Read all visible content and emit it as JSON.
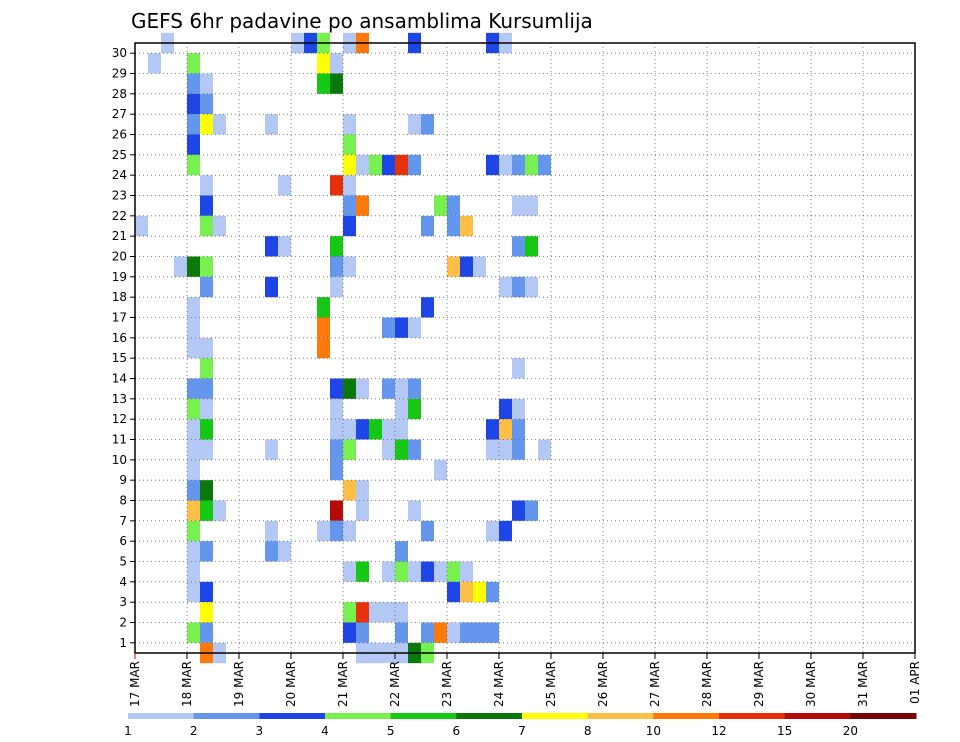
{
  "chart_data": {
    "type": "heatmap",
    "title": "GEFS 6hr padavine po ansamblima Kursumlija",
    "xlabel": "",
    "ylabel": "",
    "x_ticks": [
      "17 MAR",
      "18 MAR",
      "19 MAR",
      "20 MAR",
      "21 MAR",
      "22 MAR",
      "23 MAR",
      "24 MAR",
      "25 MAR",
      "26 MAR",
      "27 MAR",
      "28 MAR",
      "29 MAR",
      "30 MAR",
      "31 MAR",
      "01 APR"
    ],
    "x_range_steps": [
      0,
      60
    ],
    "y_ticks": [
      1,
      2,
      3,
      4,
      5,
      6,
      7,
      8,
      9,
      10,
      11,
      12,
      13,
      14,
      15,
      16,
      17,
      18,
      19,
      20,
      21,
      22,
      23,
      24,
      25,
      26,
      27,
      28,
      29,
      30
    ],
    "y_range": [
      0,
      30
    ],
    "grid": true,
    "colorbar": {
      "labels": [
        "1",
        "2",
        "3",
        "4",
        "5",
        "6",
        "7",
        "8",
        "10",
        "12",
        "15",
        "20"
      ],
      "colors": [
        "#b4c8f5",
        "#6496ee",
        "#1e46e6",
        "#78f050",
        "#14c814",
        "#0a780a",
        "#ffff00",
        "#ffbe46",
        "#ff780a",
        "#e6320a",
        "#b40a0a",
        "#780505"
      ]
    },
    "cells": [
      [
        2,
        30,
        0
      ],
      [
        12,
        30,
        0
      ],
      [
        13,
        30,
        2
      ],
      [
        14,
        30,
        3
      ],
      [
        16,
        30,
        0
      ],
      [
        17,
        30,
        8
      ],
      [
        21,
        30,
        2
      ],
      [
        27,
        30,
        2
      ],
      [
        28,
        30,
        0
      ],
      [
        1,
        29,
        0
      ],
      [
        4,
        29,
        3
      ],
      [
        14,
        29,
        6
      ],
      [
        15,
        29,
        0
      ],
      [
        4,
        28,
        1
      ],
      [
        5,
        28,
        0
      ],
      [
        14,
        28,
        4
      ],
      [
        15,
        28,
        5
      ],
      [
        4,
        27,
        2
      ],
      [
        5,
        27,
        1
      ],
      [
        4,
        26,
        1
      ],
      [
        5,
        26,
        6
      ],
      [
        6,
        26,
        0
      ],
      [
        10,
        26,
        0
      ],
      [
        16,
        26,
        0
      ],
      [
        21,
        26,
        0
      ],
      [
        22,
        26,
        1
      ],
      [
        4,
        25,
        2
      ],
      [
        16,
        25,
        3
      ],
      [
        4,
        24,
        3
      ],
      [
        16,
        24,
        6
      ],
      [
        17,
        24,
        0
      ],
      [
        18,
        24,
        3
      ],
      [
        19,
        24,
        2
      ],
      [
        20,
        24,
        3
      ],
      [
        20,
        24,
        9
      ],
      [
        21,
        24,
        1
      ],
      [
        27,
        24,
        2
      ],
      [
        28,
        24,
        0
      ],
      [
        29,
        24,
        1
      ],
      [
        30,
        24,
        3
      ],
      [
        31,
        24,
        1
      ],
      [
        5,
        23,
        0
      ],
      [
        11,
        23,
        0
      ],
      [
        15,
        23,
        9
      ],
      [
        16,
        23,
        0
      ],
      [
        5,
        22,
        2
      ],
      [
        16,
        22,
        1
      ],
      [
        17,
        22,
        8
      ],
      [
        23,
        22,
        3
      ],
      [
        24,
        22,
        1
      ],
      [
        29,
        22,
        0
      ],
      [
        30,
        22,
        0
      ],
      [
        0,
        21,
        0
      ],
      [
        5,
        21,
        3
      ],
      [
        6,
        21,
        0
      ],
      [
        16,
        21,
        2
      ],
      [
        22,
        21,
        1
      ],
      [
        24,
        21,
        1
      ],
      [
        25,
        21,
        7
      ],
      [
        10,
        20,
        2
      ],
      [
        11,
        20,
        0
      ],
      [
        15,
        20,
        4
      ],
      [
        29,
        20,
        1
      ],
      [
        30,
        20,
        4
      ],
      [
        3,
        19,
        0
      ],
      [
        4,
        19,
        5
      ],
      [
        5,
        19,
        3
      ],
      [
        15,
        19,
        1
      ],
      [
        16,
        19,
        0
      ],
      [
        24,
        19,
        7
      ],
      [
        25,
        19,
        2
      ],
      [
        26,
        19,
        0
      ],
      [
        5,
        18,
        1
      ],
      [
        10,
        18,
        0
      ],
      [
        10,
        18,
        2
      ],
      [
        15,
        18,
        0
      ],
      [
        28,
        18,
        0
      ],
      [
        29,
        18,
        1
      ],
      [
        30,
        18,
        0
      ],
      [
        4,
        17,
        0
      ],
      [
        14,
        17,
        4
      ],
      [
        22,
        17,
        2
      ],
      [
        4,
        16,
        0
      ],
      [
        14,
        16,
        8
      ],
      [
        19,
        16,
        1
      ],
      [
        20,
        16,
        2
      ],
      [
        21,
        16,
        0
      ],
      [
        4,
        15,
        0
      ],
      [
        5,
        15,
        0
      ],
      [
        14,
        15,
        0
      ],
      [
        14,
        15,
        8
      ],
      [
        5,
        14,
        3
      ],
      [
        29,
        14,
        0
      ],
      [
        4,
        13,
        1
      ],
      [
        5,
        13,
        1
      ],
      [
        15,
        13,
        2
      ],
      [
        16,
        13,
        5
      ],
      [
        17,
        13,
        0
      ],
      [
        19,
        13,
        1
      ],
      [
        20,
        13,
        0
      ],
      [
        21,
        13,
        1
      ],
      [
        4,
        12,
        3
      ],
      [
        5,
        12,
        0
      ],
      [
        15,
        12,
        0
      ],
      [
        20,
        12,
        0
      ],
      [
        21,
        12,
        4
      ],
      [
        28,
        12,
        2
      ],
      [
        29,
        12,
        0
      ],
      [
        4,
        11,
        0
      ],
      [
        5,
        11,
        4
      ],
      [
        15,
        11,
        0
      ],
      [
        16,
        11,
        0
      ],
      [
        17,
        11,
        2
      ],
      [
        18,
        11,
        4
      ],
      [
        19,
        11,
        0
      ],
      [
        20,
        11,
        0
      ],
      [
        27,
        11,
        2
      ],
      [
        28,
        11,
        7
      ],
      [
        29,
        11,
        1
      ],
      [
        4,
        10,
        0
      ],
      [
        5,
        10,
        0
      ],
      [
        10,
        10,
        0
      ],
      [
        15,
        10,
        1
      ],
      [
        16,
        10,
        3
      ],
      [
        19,
        10,
        0
      ],
      [
        20,
        10,
        4
      ],
      [
        21,
        10,
        1
      ],
      [
        27,
        10,
        0
      ],
      [
        28,
        10,
        0
      ],
      [
        29,
        10,
        1
      ],
      [
        31,
        10,
        0
      ],
      [
        4,
        9,
        0
      ],
      [
        15,
        9,
        1
      ],
      [
        23,
        9,
        0
      ],
      [
        4,
        8,
        1
      ],
      [
        5,
        8,
        5
      ],
      [
        16,
        8,
        7
      ],
      [
        17,
        8,
        0
      ],
      [
        4,
        7,
        7
      ],
      [
        5,
        7,
        4
      ],
      [
        6,
        7,
        0
      ],
      [
        15,
        7,
        10
      ],
      [
        17,
        7,
        0
      ],
      [
        21,
        7,
        0
      ],
      [
        29,
        7,
        2
      ],
      [
        30,
        7,
        1
      ],
      [
        4,
        6,
        3
      ],
      [
        10,
        6,
        0
      ],
      [
        14,
        6,
        0
      ],
      [
        15,
        6,
        1
      ],
      [
        16,
        6,
        0
      ],
      [
        22,
        6,
        1
      ],
      [
        27,
        6,
        0
      ],
      [
        28,
        6,
        2
      ],
      [
        4,
        5,
        0
      ],
      [
        5,
        5,
        1
      ],
      [
        10,
        5,
        1
      ],
      [
        11,
        5,
        0
      ],
      [
        20,
        5,
        1
      ],
      [
        4,
        4,
        0
      ],
      [
        16,
        4,
        0
      ],
      [
        17,
        4,
        4
      ],
      [
        19,
        4,
        0
      ],
      [
        20,
        4,
        3
      ],
      [
        21,
        4,
        0
      ],
      [
        22,
        4,
        2
      ],
      [
        23,
        4,
        0
      ],
      [
        24,
        4,
        3
      ],
      [
        25,
        4,
        0
      ],
      [
        4,
        3,
        0
      ],
      [
        5,
        3,
        2
      ],
      [
        24,
        3,
        2
      ],
      [
        25,
        3,
        7
      ],
      [
        26,
        3,
        6
      ],
      [
        27,
        3,
        1
      ],
      [
        5,
        2,
        6
      ],
      [
        16,
        2,
        3
      ],
      [
        17,
        2,
        9
      ],
      [
        18,
        2,
        0
      ],
      [
        19,
        2,
        0
      ],
      [
        20,
        2,
        0
      ],
      [
        4,
        1,
        3
      ],
      [
        5,
        1,
        1
      ],
      [
        16,
        1,
        2
      ],
      [
        17,
        1,
        1
      ],
      [
        20,
        1,
        1
      ],
      [
        22,
        1,
        1
      ],
      [
        23,
        1,
        8
      ],
      [
        24,
        1,
        0
      ],
      [
        25,
        1,
        1
      ],
      [
        26,
        1,
        1
      ],
      [
        27,
        1,
        1
      ],
      [
        5,
        0,
        8
      ],
      [
        6,
        0,
        0
      ],
      [
        17,
        0,
        0
      ],
      [
        18,
        0,
        0
      ],
      [
        19,
        0,
        0
      ],
      [
        20,
        0,
        0
      ],
      [
        21,
        0,
        5
      ],
      [
        22,
        0,
        3
      ]
    ]
  }
}
